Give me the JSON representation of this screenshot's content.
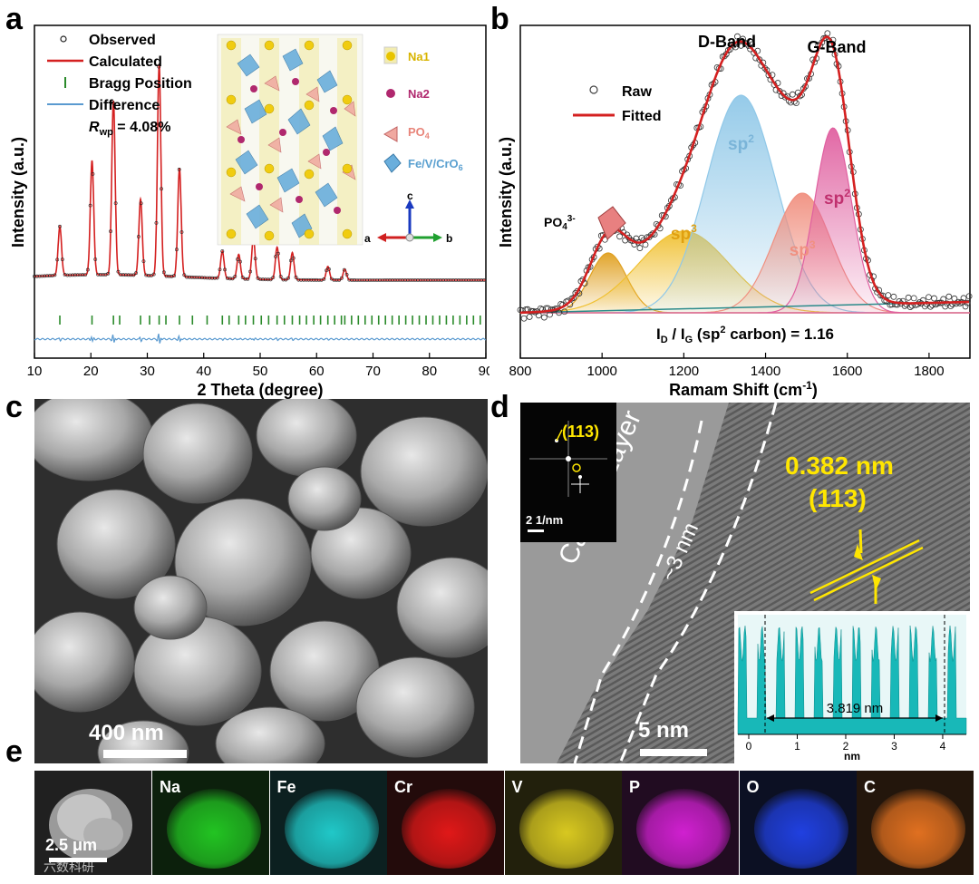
{
  "panels": {
    "a": "a",
    "b": "b",
    "c": "c",
    "d": "d",
    "e": "e"
  },
  "chart_data": [
    {
      "type": "line",
      "panel": "a",
      "xlabel": "2 Theta (degree)",
      "ylabel": "Intensity (a.u.)",
      "xlim": [
        10,
        90
      ],
      "xticks": [
        10,
        20,
        30,
        40,
        50,
        60,
        70,
        80,
        90
      ],
      "legend": [
        "Observed",
        "Calculated",
        "Bragg Position",
        "Difference"
      ],
      "rwp_label": "R",
      "rwp_sub": "wp",
      "rwp_value": " = 4.08%",
      "peaks": [
        {
          "x": 14.5,
          "h": 0.18
        },
        {
          "x": 20.2,
          "h": 0.42
        },
        {
          "x": 24.0,
          "h": 0.64
        },
        {
          "x": 28.8,
          "h": 0.28
        },
        {
          "x": 32.1,
          "h": 0.78
        },
        {
          "x": 35.7,
          "h": 0.4
        },
        {
          "x": 43.3,
          "h": 0.1
        },
        {
          "x": 46.2,
          "h": 0.09
        },
        {
          "x": 48.8,
          "h": 0.15
        },
        {
          "x": 53.0,
          "h": 0.12
        },
        {
          "x": 55.7,
          "h": 0.1
        },
        {
          "x": 62.0,
          "h": 0.05
        },
        {
          "x": 65.0,
          "h": 0.04
        }
      ],
      "baseline": 0.03,
      "bragg": [
        14.5,
        20.2,
        24.0,
        25.1,
        28.8,
        30.4,
        32.1,
        33.3,
        35.7,
        38.0,
        40.6,
        43.3,
        44.5,
        46.2,
        47.4,
        48.8,
        50.2,
        51.5,
        53.0,
        54.3,
        55.7,
        57.0,
        58.2,
        59.5,
        60.7,
        62.0,
        63.2,
        64.4,
        65.0,
        66.2,
        67.4,
        68.6,
        69.8,
        71.0,
        72.2,
        73.4,
        74.6,
        75.8,
        77.0,
        78.2,
        79.4,
        80.6,
        81.8,
        83.0,
        84.2,
        85.4,
        86.6,
        87.8,
        89.0
      ],
      "structure_legend": [
        {
          "name": "Na1",
          "color": "#e8c400"
        },
        {
          "name": "Na2",
          "color": "#b0286e"
        },
        {
          "name": "PO",
          "sub": "4",
          "color": "#e8857a"
        },
        {
          "name": "Fe/V/CrO",
          "sub": "6",
          "color": "#5aa0d0"
        }
      ],
      "axes_labels": [
        "c",
        "a",
        "b"
      ]
    },
    {
      "type": "line",
      "panel": "b",
      "xlabel": "Ramam Shift (cm",
      "xlabel_sup": "-1",
      "ylabel": "Intensity (a.u.)",
      "xlim": [
        800,
        1900
      ],
      "xticks": [
        800,
        1000,
        1200,
        1400,
        1600,
        1800
      ],
      "legend": [
        "Raw",
        "Fitted"
      ],
      "bands": [
        {
          "center": 1015,
          "width": 45,
          "height": 0.22,
          "color": "#e0a020",
          "label": ""
        },
        {
          "center": 1200,
          "width": 110,
          "height": 0.3,
          "color": "#f0c030",
          "label": "sp"
        },
        {
          "center": 1340,
          "width": 85,
          "height": 0.8,
          "color": "#90c8e8",
          "label": "sp"
        },
        {
          "center": 1490,
          "width": 70,
          "height": 0.44,
          "color": "#f09080",
          "label": "sp"
        },
        {
          "center": 1565,
          "width": 45,
          "height": 0.68,
          "color": "#e060a0",
          "label": "sp"
        }
      ],
      "band_sups": [
        "3",
        "2",
        "3",
        "2"
      ],
      "band_names": [
        "D-Band",
        "G-Band"
      ],
      "po_label": "PO",
      "po_sub": "4",
      "po_sup": "3-",
      "ratio_text": "I",
      "ratio_d": "D",
      "ratio_mid": " / I",
      "ratio_g": "G",
      "ratio_sp": " (sp",
      "ratio_sup": "2",
      "ratio_end": " carbon) = 1.16"
    },
    {
      "type": "bar",
      "panel": "d-inset",
      "xlabel": "nm",
      "xticks": [
        0,
        1,
        2,
        3,
        4
      ],
      "measure": "3.819 nm",
      "peak_count": 12
    }
  ],
  "sem": {
    "scale": "400 nm"
  },
  "hrtem": {
    "fft_label": "(113)",
    "fft_scale": "2 1/nm",
    "layer_label": "Carbon Layer",
    "thickness": "~3 nm",
    "d_spacing": "0.382 nm",
    "plane": "(113)",
    "scale": "5 nm"
  },
  "eds": {
    "scale": "2.5 μm",
    "watermark": "六数科研",
    "maps": [
      {
        "el": "Na",
        "color": "#22c422"
      },
      {
        "el": "Fe",
        "color": "#20c8c8"
      },
      {
        "el": "Cr",
        "color": "#e01818"
      },
      {
        "el": "V",
        "color": "#d8c820"
      },
      {
        "el": "P",
        "color": "#d020d0"
      },
      {
        "el": "O",
        "color": "#2040e0"
      },
      {
        "el": "C",
        "color": "#e07020"
      }
    ]
  }
}
